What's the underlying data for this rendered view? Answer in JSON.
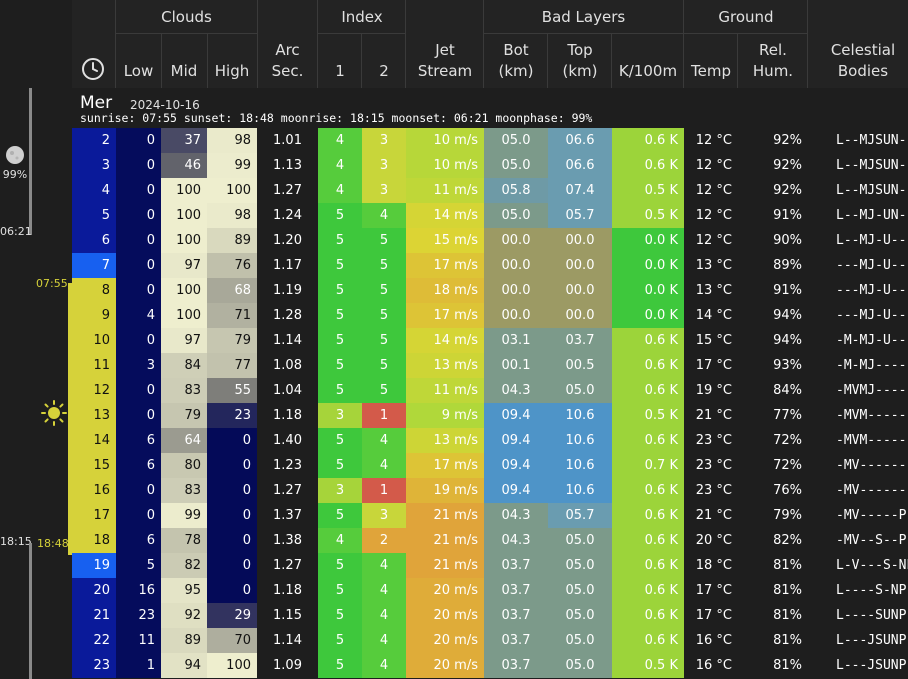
{
  "header": {
    "groups": {
      "clouds": "Clouds",
      "index": "Index",
      "bad_layers": "Bad Layers",
      "ground": "Ground"
    },
    "columns": {
      "low": "Low",
      "mid": "Mid",
      "high": "High",
      "arc1": "Arc",
      "arc2": "Sec.",
      "idx1": "1",
      "idx2": "2",
      "jet1": "Jet",
      "jet2": "Stream",
      "bot1": "Bot",
      "bot2": "(km)",
      "top1": "Top",
      "top2": "(km)",
      "k100m": "K/100m",
      "temp": "Temp",
      "hum1": "Rel.",
      "hum2": "Hum.",
      "cel1": "Celestial",
      "cel2": "Bodies"
    }
  },
  "day": {
    "name": "Mer",
    "date": "2024-10-16",
    "info": "sunrise: 07:55 sunset: 18:48 moonrise: 18:15 moonset: 06:21 moonphase: 99%"
  },
  "left": {
    "moonphase": "99%",
    "moonset": "06:21",
    "sunrise": "07:55",
    "sunset": "18:48",
    "moonrise": "18:15"
  },
  "rows": [
    {
      "hour": "2",
      "low": "0",
      "mid": "37",
      "high": "98",
      "arc": "1.01",
      "i1": "4",
      "i2": "3",
      "jet": "10 m/s",
      "bot": "05.0",
      "top": "06.6",
      "k": "0.6 K",
      "temp": "12 °C",
      "hum": "92%",
      "cel": "L--MJSUN-"
    },
    {
      "hour": "3",
      "low": "0",
      "mid": "46",
      "high": "99",
      "arc": "1.13",
      "i1": "4",
      "i2": "3",
      "jet": "10 m/s",
      "bot": "05.0",
      "top": "06.6",
      "k": "0.6 K",
      "temp": "12 °C",
      "hum": "92%",
      "cel": "L--MJSUN-"
    },
    {
      "hour": "4",
      "low": "0",
      "mid": "100",
      "high": "100",
      "arc": "1.27",
      "i1": "4",
      "i2": "3",
      "jet": "11 m/s",
      "bot": "05.8",
      "top": "07.4",
      "k": "0.5 K",
      "temp": "12 °C",
      "hum": "92%",
      "cel": "L--MJSUN-"
    },
    {
      "hour": "5",
      "low": "0",
      "mid": "100",
      "high": "98",
      "arc": "1.24",
      "i1": "5",
      "i2": "4",
      "jet": "14 m/s",
      "bot": "05.0",
      "top": "05.7",
      "k": "0.5 K",
      "temp": "12 °C",
      "hum": "91%",
      "cel": "L--MJ-UN-"
    },
    {
      "hour": "6",
      "low": "0",
      "mid": "100",
      "high": "89",
      "arc": "1.20",
      "i1": "5",
      "i2": "5",
      "jet": "15 m/s",
      "bot": "00.0",
      "top": "00.0",
      "k": "0.0 K",
      "temp": "12 °C",
      "hum": "90%",
      "cel": "L--MJ-U--"
    },
    {
      "hour": "7",
      "low": "0",
      "mid": "97",
      "high": "76",
      "arc": "1.17",
      "i1": "5",
      "i2": "5",
      "jet": "17 m/s",
      "bot": "00.0",
      "top": "00.0",
      "k": "0.0 K",
      "temp": "13 °C",
      "hum": "89%",
      "cel": "---MJ-U--"
    },
    {
      "hour": "8",
      "low": "0",
      "mid": "100",
      "high": "68",
      "arc": "1.19",
      "i1": "5",
      "i2": "5",
      "jet": "18 m/s",
      "bot": "00.0",
      "top": "00.0",
      "k": "0.0 K",
      "temp": "13 °C",
      "hum": "91%",
      "cel": "---MJ-U--"
    },
    {
      "hour": "9",
      "low": "4",
      "mid": "100",
      "high": "71",
      "arc": "1.28",
      "i1": "5",
      "i2": "5",
      "jet": "17 m/s",
      "bot": "00.0",
      "top": "00.0",
      "k": "0.0 K",
      "temp": "14 °C",
      "hum": "94%",
      "cel": "---MJ-U--"
    },
    {
      "hour": "10",
      "low": "0",
      "mid": "97",
      "high": "79",
      "arc": "1.14",
      "i1": "5",
      "i2": "5",
      "jet": "14 m/s",
      "bot": "03.1",
      "top": "03.7",
      "k": "0.6 K",
      "temp": "15 °C",
      "hum": "94%",
      "cel": "-M-MJ-U--"
    },
    {
      "hour": "11",
      "low": "3",
      "mid": "84",
      "high": "77",
      "arc": "1.08",
      "i1": "5",
      "i2": "5",
      "jet": "13 m/s",
      "bot": "00.1",
      "top": "00.5",
      "k": "0.6 K",
      "temp": "17 °C",
      "hum": "93%",
      "cel": "-M-MJ----"
    },
    {
      "hour": "12",
      "low": "0",
      "mid": "83",
      "high": "55",
      "arc": "1.04",
      "i1": "5",
      "i2": "5",
      "jet": "11 m/s",
      "bot": "04.3",
      "top": "05.0",
      "k": "0.6 K",
      "temp": "19 °C",
      "hum": "84%",
      "cel": "-MVMJ----"
    },
    {
      "hour": "13",
      "low": "0",
      "mid": "79",
      "high": "23",
      "arc": "1.18",
      "i1": "3",
      "i2": "1",
      "jet": "9 m/s",
      "bot": "09.4",
      "top": "10.6",
      "k": "0.5 K",
      "temp": "21 °C",
      "hum": "77%",
      "cel": "-MVM-----"
    },
    {
      "hour": "14",
      "low": "6",
      "mid": "64",
      "high": "0",
      "arc": "1.40",
      "i1": "5",
      "i2": "4",
      "jet": "13 m/s",
      "bot": "09.4",
      "top": "10.6",
      "k": "0.6 K",
      "temp": "23 °C",
      "hum": "72%",
      "cel": "-MVM-----"
    },
    {
      "hour": "15",
      "low": "6",
      "mid": "80",
      "high": "0",
      "arc": "1.23",
      "i1": "5",
      "i2": "4",
      "jet": "17 m/s",
      "bot": "09.4",
      "top": "10.6",
      "k": "0.7 K",
      "temp": "23 °C",
      "hum": "72%",
      "cel": "-MV------"
    },
    {
      "hour": "16",
      "low": "0",
      "mid": "83",
      "high": "0",
      "arc": "1.27",
      "i1": "3",
      "i2": "1",
      "jet": "19 m/s",
      "bot": "09.4",
      "top": "10.6",
      "k": "0.6 K",
      "temp": "23 °C",
      "hum": "76%",
      "cel": "-MV------"
    },
    {
      "hour": "17",
      "low": "0",
      "mid": "99",
      "high": "0",
      "arc": "1.37",
      "i1": "5",
      "i2": "3",
      "jet": "21 m/s",
      "bot": "04.3",
      "top": "05.7",
      "k": "0.6 K",
      "temp": "21 °C",
      "hum": "79%",
      "cel": "-MV-----P"
    },
    {
      "hour": "18",
      "low": "6",
      "mid": "78",
      "high": "0",
      "arc": "1.38",
      "i1": "4",
      "i2": "2",
      "jet": "21 m/s",
      "bot": "04.3",
      "top": "05.0",
      "k": "0.6 K",
      "temp": "20 °C",
      "hum": "82%",
      "cel": "-MV--S--P"
    },
    {
      "hour": "19",
      "low": "5",
      "mid": "82",
      "high": "0",
      "arc": "1.27",
      "i1": "5",
      "i2": "4",
      "jet": "21 m/s",
      "bot": "03.7",
      "top": "05.0",
      "k": "0.6 K",
      "temp": "18 °C",
      "hum": "81%",
      "cel": "L-V---S-NP"
    },
    {
      "hour": "20",
      "low": "16",
      "mid": "95",
      "high": "0",
      "arc": "1.18",
      "i1": "5",
      "i2": "4",
      "jet": "20 m/s",
      "bot": "03.7",
      "top": "05.0",
      "k": "0.6 K",
      "temp": "17 °C",
      "hum": "81%",
      "cel": "L----S-NP"
    },
    {
      "hour": "21",
      "low": "23",
      "mid": "92",
      "high": "29",
      "arc": "1.15",
      "i1": "5",
      "i2": "4",
      "jet": "20 m/s",
      "bot": "03.7",
      "top": "05.0",
      "k": "0.6 K",
      "temp": "17 °C",
      "hum": "81%",
      "cel": "L----SUNP"
    },
    {
      "hour": "22",
      "low": "11",
      "mid": "89",
      "high": "70",
      "arc": "1.14",
      "i1": "5",
      "i2": "4",
      "jet": "20 m/s",
      "bot": "03.7",
      "top": "05.0",
      "k": "0.6 K",
      "temp": "16 °C",
      "hum": "81%",
      "cel": "L---JSUNP"
    },
    {
      "hour": "23",
      "low": "1",
      "mid": "94",
      "high": "100",
      "arc": "1.09",
      "i1": "5",
      "i2": "4",
      "jet": "20 m/s",
      "bot": "03.7",
      "top": "05.0",
      "k": "0.5 K",
      "temp": "16 °C",
      "hum": "81%",
      "cel": "L---JSUNP"
    }
  ],
  "colors": {
    "background": "#1e1e1e",
    "hour_night": "#0a1a9a",
    "hour_twilight": "#1760f0",
    "hour_day": "#d6d23a",
    "low_cloud": "#050c5c",
    "idx_good": "#3ec83c",
    "idx_bad": "#d35a4a",
    "jet_low": "#b9d83a",
    "jet_high": "#e0a43a",
    "layer_blue": "#4e94c8",
    "layer_tan": "#9c9a64",
    "k_green": "#9cd43a"
  }
}
